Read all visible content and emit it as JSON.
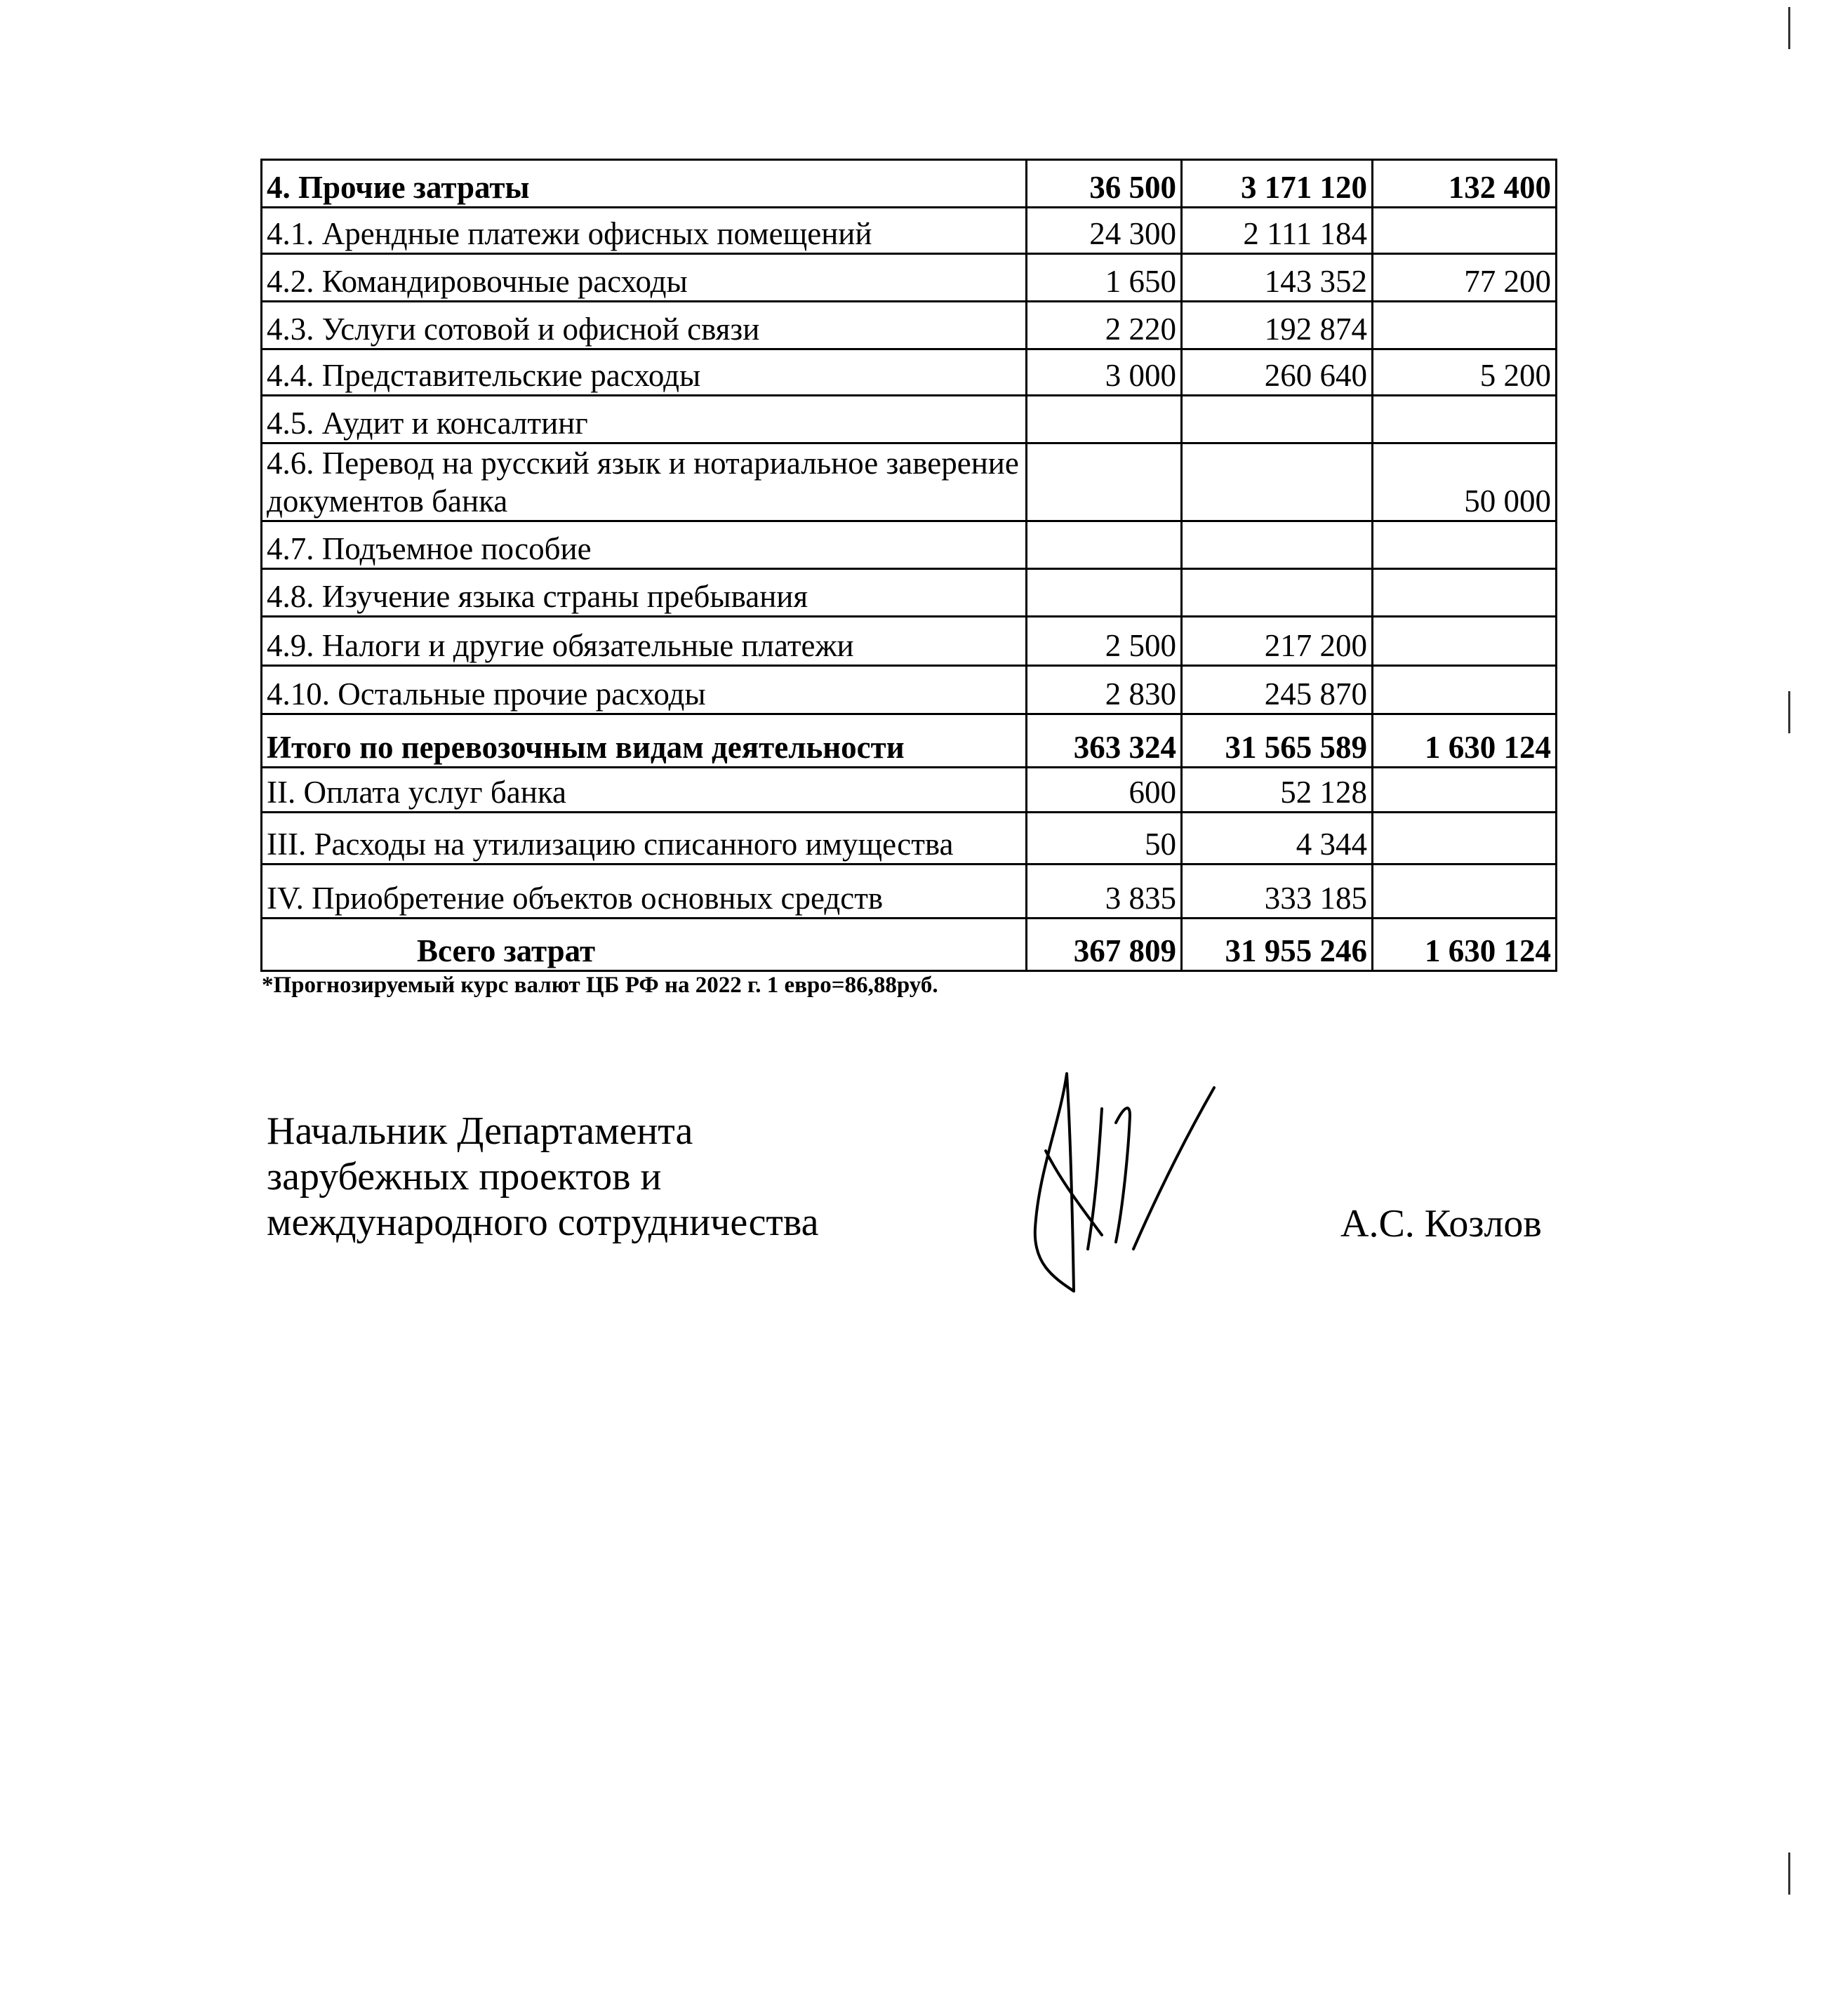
{
  "table": {
    "rows": [
      {
        "label": "4. Прочие затраты",
        "c1": "36 500",
        "c2": "3 171 120",
        "c3": "132 400",
        "bold": true
      },
      {
        "label": "4.1. Арендные  платежи офисных помещений",
        "c1": "24 300",
        "c2": "2 111 184",
        "c3": ""
      },
      {
        "label": "4.2. Командировочные расходы",
        "c1": "1 650",
        "c2": "143 352",
        "c3": "77 200"
      },
      {
        "label": "4.3. Услуги сотовой и офисной связи",
        "c1": "2 220",
        "c2": "192 874",
        "c3": ""
      },
      {
        "label": "4.4. Представительские расходы",
        "c1": "3 000",
        "c2": "260 640",
        "c3": "5 200"
      },
      {
        "label": "4.5. Аудит и консалтинг",
        "c1": "",
        "c2": "",
        "c3": ""
      },
      {
        "label": "4.6. Перевод на русский язык и нотариальное заверение документов банка",
        "c1": "",
        "c2": "",
        "c3": "50 000"
      },
      {
        "label": "4.7. Подъемное пособие",
        "c1": "",
        "c2": "",
        "c3": ""
      },
      {
        "label": "4.8. Изучение языка страны пребывания",
        "c1": "",
        "c2": "",
        "c3": ""
      },
      {
        "label": "4.9. Налоги и другие обязательные платежи",
        "c1": "2 500",
        "c2": "217 200",
        "c3": ""
      },
      {
        "label": "4.10. Остальные прочие расходы",
        "c1": "2 830",
        "c2": "245 870",
        "c3": ""
      },
      {
        "label": "Итого по перевозочным видам деятельности",
        "c1": "363 324",
        "c2": "31 565 589",
        "c3": "1 630 124",
        "bold": true
      },
      {
        "label": "II. Оплата услуг банка",
        "c1": "600",
        "c2": "52 128",
        "c3": ""
      },
      {
        "label": "III. Расходы на утилизацию списанного имущества",
        "c1": "50",
        "c2": "4 344",
        "c3": ""
      },
      {
        "label": "IV. Приобретение объектов основных средств",
        "c1": "3 835",
        "c2": "333 185",
        "c3": ""
      },
      {
        "label": "Всего затрат",
        "c1": "367 809",
        "c2": "31 955 246",
        "c3": "1 630 124",
        "bold": true
      }
    ]
  },
  "footnote": "*Прогнозируемый курс валют ЦБ РФ на 2022 г. 1 евро=86,88руб.",
  "signatory": {
    "position_lines": [
      "Начальник Департамента",
      "зарубежных проектов и",
      "международного сотрудничества"
    ],
    "name": "А.С. Козлов"
  }
}
